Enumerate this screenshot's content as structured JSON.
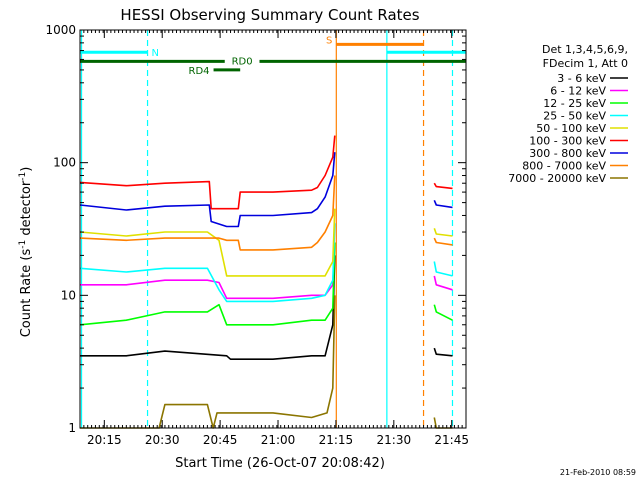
{
  "chart_data": {
    "type": "line",
    "title": "HESSI Observing Summary Count Rates",
    "xlabel": "Start Time (26-Oct-07 20:08:42)",
    "ylabel": "Count Rate (s",
    "ylabel_sup1": "-1",
    "ylabel_mid": " detector",
    "ylabel_sup2": "-1",
    "ylabel_end": ")",
    "x_tick_labels": [
      "20:15",
      "20:30",
      "20:45",
      "21:00",
      "21:15",
      "21:30",
      "21:45"
    ],
    "x_tick_minutes": [
      6.3,
      21.3,
      36.3,
      51.3,
      66.3,
      81.3,
      96.3
    ],
    "xlim_minutes": [
      0,
      100
    ],
    "y_scale": "log",
    "ylim": [
      1,
      1000
    ],
    "y_tick_labels": [
      "1",
      "10",
      "100",
      "1000"
    ],
    "legend": {
      "position": "right",
      "header": [
        "Det 1,3,4,5,6,9,",
        "FDecim 1, Att 0"
      ],
      "entries": [
        {
          "label": "3 - 6 keV",
          "color": "#000000"
        },
        {
          "label": "6 - 12 keV",
          "color": "#ff00ff"
        },
        {
          "label": "12 - 25 keV",
          "color": "#00ff00"
        },
        {
          "label": "25 - 50 keV",
          "color": "#00ffff"
        },
        {
          "label": "50 - 100 keV",
          "color": "#e0e000"
        },
        {
          "label": "100 - 300 keV",
          "color": "#ff0000"
        },
        {
          "label": "300 - 800 keV",
          "color": "#0000dd"
        },
        {
          "label": "800 - 7000 keV",
          "color": "#ff8000"
        },
        {
          "label": "7000 - 20000 keV",
          "color": "#8b7500"
        }
      ]
    },
    "series": [
      {
        "name": "3 - 6 keV",
        "color": "#000000",
        "segments": [
          {
            "x": [
              0,
              12,
              22,
              38,
              39,
              50,
              60,
              63.5,
              65.5,
              66
            ],
            "y": [
              3.5,
              3.5,
              3.8,
              3.5,
              3.3,
              3.3,
              3.5,
              3.5,
              6,
              20
            ]
          },
          {
            "x": [
              91.8,
              92.3,
              96.5
            ],
            "y": [
              4,
              3.6,
              3.5
            ]
          }
        ]
      },
      {
        "name": "6 - 12 keV",
        "color": "#ff00ff",
        "segments": [
          {
            "x": [
              0,
              12,
              22,
              33,
              36,
              38,
              50,
              60,
              63.5,
              65.5,
              66
            ],
            "y": [
              12,
              12,
              13,
              13,
              12.5,
              9.5,
              9.5,
              10,
              10,
              12,
              25
            ]
          },
          {
            "x": [
              91.8,
              92.3,
              96.5
            ],
            "y": [
              14,
              12,
              11
            ]
          }
        ]
      },
      {
        "name": "12 - 25 keV",
        "color": "#00ff00",
        "segments": [
          {
            "x": [
              0,
              12,
              22,
              33,
              36,
              38,
              50,
              60,
              63.5,
              65.5,
              66
            ],
            "y": [
              6,
              6.5,
              7.5,
              7.5,
              8.5,
              6,
              6,
              6.5,
              6.5,
              8,
              25
            ]
          },
          {
            "x": [
              91.8,
              92.3,
              96.5
            ],
            "y": [
              8.5,
              7.5,
              6.5
            ]
          }
        ]
      },
      {
        "name": "25 - 50 keV",
        "color": "#00ffff",
        "segments": [
          {
            "x": [
              0,
              12,
              22,
              33,
              36,
              38,
              50,
              60,
              63.5,
              65.5,
              66
            ],
            "y": [
              16,
              15,
              16,
              16,
              11,
              9,
              9,
              9.5,
              10,
              13,
              35
            ]
          },
          {
            "x": [
              91.8,
              92.3,
              96.5
            ],
            "y": [
              18,
              15,
              14
            ]
          }
        ]
      },
      {
        "name": "50 - 100 keV",
        "color": "#e0e000",
        "segments": [
          {
            "x": [
              0,
              12,
              22,
              33,
              36,
              38,
              50,
              60,
              63.5,
              65.5,
              66
            ],
            "y": [
              30,
              28,
              30,
              30,
              26,
              14,
              14,
              14,
              14,
              18,
              45
            ]
          },
          {
            "x": [
              91.8,
              92.3,
              96.5
            ],
            "y": [
              32,
              29,
              28
            ]
          }
        ]
      },
      {
        "name": "100 - 300 keV",
        "color": "#ff0000",
        "segments": [
          {
            "x": [
              0,
              12,
              22,
              33.5,
              34,
              38,
              41,
              41.5,
              50,
              60,
              61.5,
              63.5,
              65.5,
              66
            ],
            "y": [
              71,
              67,
              70,
              72,
              45,
              45,
              45,
              60,
              60,
              62,
              65,
              80,
              110,
              160
            ]
          },
          {
            "x": [
              91.8,
              92.3,
              96.5
            ],
            "y": [
              70,
              66,
              64
            ]
          }
        ]
      },
      {
        "name": "300 - 800 keV",
        "color": "#0000dd",
        "segments": [
          {
            "x": [
              0,
              12,
              22,
              33.5,
              34,
              38,
              41,
              41.5,
              50,
              60,
              61.5,
              63.5,
              65.5,
              66
            ],
            "y": [
              48,
              44,
              47,
              48,
              36,
              33,
              33,
              40,
              40,
              42,
              45,
              55,
              80,
              120
            ]
          },
          {
            "x": [
              91.8,
              92.3,
              96.5
            ],
            "y": [
              52,
              48,
              46
            ]
          }
        ]
      },
      {
        "name": "800 - 7000 keV",
        "color": "#ff8000",
        "segments": [
          {
            "x": [
              0,
              12,
              22,
              33,
              36,
              38,
              41,
              41.5,
              50,
              60,
              61.5,
              63.5,
              65.5,
              66
            ],
            "y": [
              27,
              26,
              27,
              27,
              27,
              26,
              26,
              22,
              22,
              23,
              25,
              30,
              40,
              80
            ]
          },
          {
            "x": [
              91.8,
              92.3,
              96.5
            ],
            "y": [
              27,
              25,
              24
            ]
          }
        ]
      },
      {
        "name": "7000 - 20000 keV",
        "color": "#8b7500",
        "segments": [
          {
            "x": [
              0,
              20.5,
              22,
              33,
              34.5,
              35.5,
              38,
              50,
              60,
              64,
              65.5,
              66
            ],
            "y": [
              1,
              1,
              1.5,
              1.5,
              1,
              1.3,
              1.3,
              1.3,
              1.2,
              1.3,
              2,
              10
            ]
          },
          {
            "x": [
              91.8,
              92.3,
              96.5
            ],
            "y": [
              1.2,
              1,
              1
            ]
          }
        ]
      }
    ],
    "annotations": {
      "vertical_lines": [
        {
          "x": 0.4,
          "color": "#00ffff",
          "style": "solid"
        },
        {
          "x": 17.5,
          "color": "#00ffff",
          "style": "dashed"
        },
        {
          "x": 66.4,
          "color": "#ff8000",
          "style": "solid"
        },
        {
          "x": 79.5,
          "color": "#00ffff",
          "style": "solid"
        },
        {
          "x": 89.0,
          "color": "#ff8000",
          "style": "dashed"
        },
        {
          "x": 96.5,
          "color": "#00ffff",
          "style": "dashed"
        }
      ],
      "bars": [
        {
          "label": "N",
          "color": "#00ffff",
          "x_start": 0,
          "x_end": 17.5,
          "y": 680,
          "label_position": "right"
        },
        {
          "label": "N",
          "color": "#00ffff",
          "x_start": 79.5,
          "x_end": 100,
          "y": 680,
          "label_position": "none"
        },
        {
          "label": "S",
          "color": "#ff8000",
          "x_start": 66.4,
          "x_end": 89.0,
          "y": 780,
          "label_position": "left"
        },
        {
          "label": "RD0",
          "color": "#006400",
          "x_start": 0,
          "x_end": 100,
          "y": 580,
          "label_position": "above-gap"
        },
        {
          "label": "RD4",
          "color": "#006400",
          "x_start": 34.6,
          "x_end": 41.5,
          "y": 500,
          "label_position": "left"
        }
      ]
    },
    "footer_timestamp": "21-Feb-2010 08:59"
  }
}
